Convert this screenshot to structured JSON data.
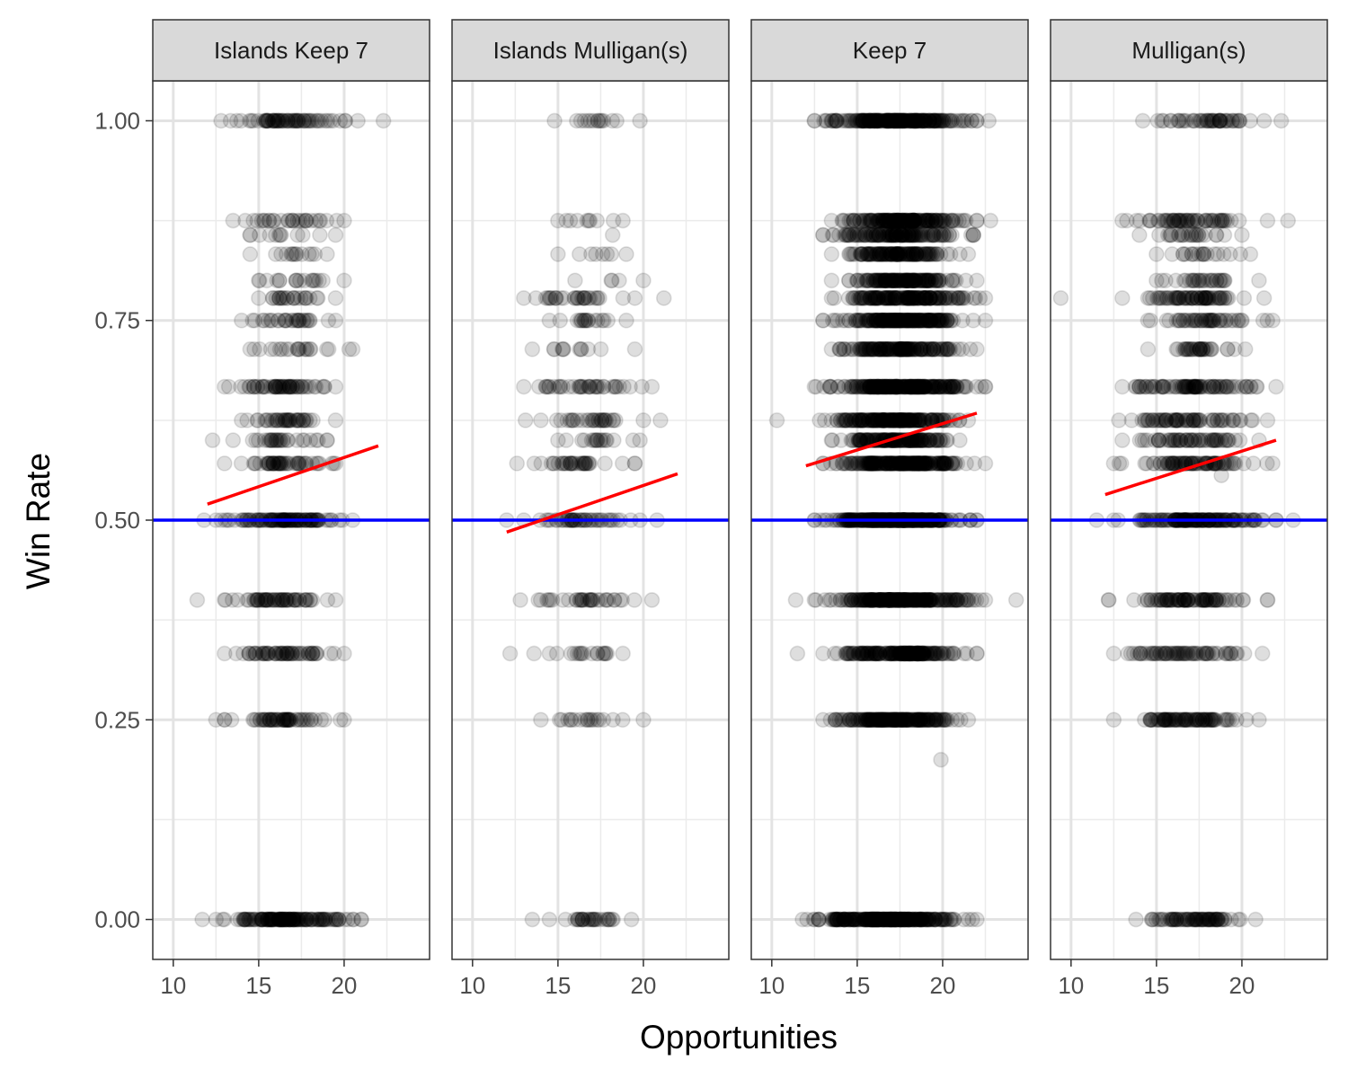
{
  "chart_data": {
    "type": "scatter",
    "xlabel": "Opportunities",
    "ylabel": "Win Rate",
    "xlim": [
      8.8,
      25.0
    ],
    "ylim": [
      -0.05,
      1.05
    ],
    "x_ticks": [
      10,
      15,
      20
    ],
    "x_tick_labels": [
      "10",
      "15",
      "20"
    ],
    "y_ticks": [
      0,
      0.25,
      0.5,
      0.75,
      1.0
    ],
    "y_tick_labels": [
      "0.00",
      "0.25",
      "0.50",
      "0.75",
      "1.00"
    ],
    "grid": true,
    "point_color": "#000000",
    "point_alpha": 0.13,
    "reference_line": {
      "y": 0.5,
      "color": "#0000ff"
    },
    "trend_color": "#ff0000",
    "panels": [
      {
        "label": "Islands Keep 7",
        "trend": {
          "x": [
            12,
            22
          ],
          "y": [
            0.52,
            0.593
          ]
        },
        "rows": [
          {
            "y": 1.0,
            "xmin": 12.8,
            "xmax": 20.8,
            "n": 70,
            "outliers": [
              22.3
            ]
          },
          {
            "y": 0.875,
            "xmin": 13.5,
            "xmax": 20.0,
            "n": 30,
            "outliers": []
          },
          {
            "y": 0.857,
            "xmin": 14.5,
            "xmax": 19.5,
            "n": 12,
            "outliers": []
          },
          {
            "y": 0.833,
            "xmin": 14.5,
            "xmax": 19.0,
            "n": 14,
            "outliers": []
          },
          {
            "y": 0.8,
            "xmin": 15.0,
            "xmax": 20.0,
            "n": 18,
            "outliers": []
          },
          {
            "y": 0.778,
            "xmin": 15.0,
            "xmax": 19.5,
            "n": 24,
            "outliers": []
          },
          {
            "y": 0.75,
            "xmin": 14.0,
            "xmax": 19.5,
            "n": 30,
            "outliers": []
          },
          {
            "y": 0.714,
            "xmin": 14.5,
            "xmax": 20.5,
            "n": 22,
            "outliers": []
          },
          {
            "y": 0.667,
            "xmin": 13.0,
            "xmax": 19.5,
            "n": 60,
            "outliers": []
          },
          {
            "y": 0.625,
            "xmin": 14.0,
            "xmax": 19.5,
            "n": 40,
            "outliers": []
          },
          {
            "y": 0.6,
            "xmin": 13.5,
            "xmax": 19.0,
            "n": 30,
            "outliers": [
              12.3
            ]
          },
          {
            "y": 0.571,
            "xmin": 13.0,
            "xmax": 19.5,
            "n": 50,
            "outliers": []
          },
          {
            "y": 0.5,
            "xmin": 12.5,
            "xmax": 20.5,
            "n": 110,
            "outliers": [
              11.8
            ]
          },
          {
            "y": 0.4,
            "xmin": 13.0,
            "xmax": 19.5,
            "n": 60,
            "outliers": [
              11.4
            ]
          },
          {
            "y": 0.333,
            "xmin": 13.0,
            "xmax": 20.0,
            "n": 60,
            "outliers": []
          },
          {
            "y": 0.25,
            "xmin": 13.0,
            "xmax": 20.0,
            "n": 60,
            "outliers": [
              12.5
            ]
          },
          {
            "y": 0.0,
            "xmin": 12.5,
            "xmax": 21.0,
            "n": 150,
            "outliers": [
              11.7
            ]
          }
        ]
      },
      {
        "label": "Islands Mulligan(s)",
        "trend": {
          "x": [
            12,
            22
          ],
          "y": [
            0.485,
            0.558
          ]
        },
        "rows": [
          {
            "y": 1.0,
            "xmin": 14.8,
            "xmax": 19.8,
            "n": 15,
            "outliers": []
          },
          {
            "y": 0.875,
            "xmin": 15.0,
            "xmax": 18.8,
            "n": 10,
            "outliers": []
          },
          {
            "y": 0.857,
            "xmin": 18.2,
            "xmax": 18.2,
            "n": 1,
            "outliers": []
          },
          {
            "y": 0.833,
            "xmin": 15.0,
            "xmax": 19.0,
            "n": 8,
            "outliers": []
          },
          {
            "y": 0.8,
            "xmin": 16.0,
            "xmax": 20.0,
            "n": 5,
            "outliers": []
          },
          {
            "y": 0.778,
            "xmin": 13.0,
            "xmax": 19.5,
            "n": 30,
            "outliers": [
              21.2
            ]
          },
          {
            "y": 0.75,
            "xmin": 14.5,
            "xmax": 19.0,
            "n": 18,
            "outliers": []
          },
          {
            "y": 0.714,
            "xmin": 13.5,
            "xmax": 19.5,
            "n": 12,
            "outliers": []
          },
          {
            "y": 0.667,
            "xmin": 13.0,
            "xmax": 20.5,
            "n": 40,
            "outliers": []
          },
          {
            "y": 0.625,
            "xmin": 14.0,
            "xmax": 20.0,
            "n": 30,
            "outliers": [
              13.1,
              21.0
            ]
          },
          {
            "y": 0.6,
            "xmin": 15.0,
            "xmax": 19.8,
            "n": 18,
            "outliers": []
          },
          {
            "y": 0.571,
            "xmin": 12.6,
            "xmax": 19.5,
            "n": 35,
            "outliers": []
          },
          {
            "y": 0.5,
            "xmin": 13.0,
            "xmax": 19.8,
            "n": 45,
            "outliers": [
              12.0,
              20.8
            ]
          },
          {
            "y": 0.4,
            "xmin": 12.8,
            "xmax": 20.5,
            "n": 35,
            "outliers": []
          },
          {
            "y": 0.333,
            "xmin": 14.5,
            "xmax": 18.8,
            "n": 18,
            "outliers": [
              12.2,
              13.6
            ]
          },
          {
            "y": 0.25,
            "xmin": 14.0,
            "xmax": 20.0,
            "n": 20,
            "outliers": []
          },
          {
            "y": 0.0,
            "xmin": 14.5,
            "xmax": 19.3,
            "n": 30,
            "outliers": [
              13.5
            ]
          }
        ]
      },
      {
        "label": "Keep 7",
        "trend": {
          "x": [
            12,
            22
          ],
          "y": [
            0.568,
            0.634
          ]
        },
        "rows": [
          {
            "y": 1.0,
            "xmin": 12.5,
            "xmax": 22.0,
            "n": 250,
            "outliers": [
              22.7
            ]
          },
          {
            "y": 0.875,
            "xmin": 13.5,
            "xmax": 22.0,
            "n": 180,
            "outliers": [
              22.8
            ]
          },
          {
            "y": 0.857,
            "xmin": 13.0,
            "xmax": 21.8,
            "n": 140,
            "outliers": []
          },
          {
            "y": 0.833,
            "xmin": 13.5,
            "xmax": 21.5,
            "n": 130,
            "outliers": []
          },
          {
            "y": 0.8,
            "xmin": 13.5,
            "xmax": 22.0,
            "n": 150,
            "outliers": []
          },
          {
            "y": 0.778,
            "xmin": 13.5,
            "xmax": 22.5,
            "n": 170,
            "outliers": []
          },
          {
            "y": 0.75,
            "xmin": 13.0,
            "xmax": 22.5,
            "n": 200,
            "outliers": []
          },
          {
            "y": 0.714,
            "xmin": 13.5,
            "xmax": 22.0,
            "n": 160,
            "outliers": []
          },
          {
            "y": 0.667,
            "xmin": 12.5,
            "xmax": 22.5,
            "n": 260,
            "outliers": []
          },
          {
            "y": 0.625,
            "xmin": 12.8,
            "xmax": 21.5,
            "n": 200,
            "outliers": [
              10.3
            ]
          },
          {
            "y": 0.6,
            "xmin": 13.5,
            "xmax": 21.0,
            "n": 150,
            "outliers": []
          },
          {
            "y": 0.571,
            "xmin": 13.0,
            "xmax": 22.5,
            "n": 220,
            "outliers": []
          },
          {
            "y": 0.5,
            "xmin": 12.5,
            "xmax": 22.0,
            "n": 320,
            "outliers": []
          },
          {
            "y": 0.4,
            "xmin": 12.5,
            "xmax": 22.5,
            "n": 260,
            "outliers": [
              11.4,
              24.3
            ]
          },
          {
            "y": 0.333,
            "xmin": 13.0,
            "xmax": 22.0,
            "n": 200,
            "outliers": [
              11.5
            ]
          },
          {
            "y": 0.25,
            "xmin": 13.0,
            "xmax": 21.5,
            "n": 200,
            "outliers": []
          },
          {
            "y": 0.2,
            "xmin": 19.9,
            "xmax": 19.9,
            "n": 1,
            "outliers": []
          },
          {
            "y": 0.0,
            "xmin": 11.8,
            "xmax": 22.0,
            "n": 320,
            "outliers": []
          }
        ]
      },
      {
        "label": "Mulligan(s)",
        "trend": {
          "x": [
            12,
            22
          ],
          "y": [
            0.532,
            0.6
          ]
        },
        "rows": [
          {
            "y": 1.0,
            "xmin": 14.2,
            "xmax": 21.3,
            "n": 50,
            "outliers": [
              22.3
            ]
          },
          {
            "y": 0.875,
            "xmin": 13.0,
            "xmax": 21.5,
            "n": 60,
            "outliers": [
              22.7
            ]
          },
          {
            "y": 0.857,
            "xmin": 14.0,
            "xmax": 20.0,
            "n": 25,
            "outliers": []
          },
          {
            "y": 0.833,
            "xmin": 15.0,
            "xmax": 20.5,
            "n": 20,
            "outliers": []
          },
          {
            "y": 0.8,
            "xmin": 15.0,
            "xmax": 21.0,
            "n": 30,
            "outliers": []
          },
          {
            "y": 0.778,
            "xmin": 13.0,
            "xmax": 21.3,
            "n": 70,
            "outliers": [
              9.4
            ]
          },
          {
            "y": 0.75,
            "xmin": 14.5,
            "xmax": 21.8,
            "n": 50,
            "outliers": []
          },
          {
            "y": 0.714,
            "xmin": 14.5,
            "xmax": 20.2,
            "n": 35,
            "outliers": []
          },
          {
            "y": 0.667,
            "xmin": 13.0,
            "xmax": 22.0,
            "n": 90,
            "outliers": []
          },
          {
            "y": 0.625,
            "xmin": 12.8,
            "xmax": 21.5,
            "n": 70,
            "outliers": []
          },
          {
            "y": 0.6,
            "xmin": 13.0,
            "xmax": 21.0,
            "n": 60,
            "outliers": []
          },
          {
            "y": 0.571,
            "xmin": 12.5,
            "xmax": 21.8,
            "n": 80,
            "outliers": []
          },
          {
            "y": 0.556,
            "xmin": 18.8,
            "xmax": 18.8,
            "n": 1,
            "outliers": []
          },
          {
            "y": 0.5,
            "xmin": 12.5,
            "xmax": 22.0,
            "n": 150,
            "outliers": [
              11.5,
              23.0
            ]
          },
          {
            "y": 0.4,
            "xmin": 12.2,
            "xmax": 21.5,
            "n": 90,
            "outliers": []
          },
          {
            "y": 0.333,
            "xmin": 12.5,
            "xmax": 21.2,
            "n": 70,
            "outliers": []
          },
          {
            "y": 0.25,
            "xmin": 12.5,
            "xmax": 21.0,
            "n": 90,
            "outliers": []
          },
          {
            "y": 0.0,
            "xmin": 13.8,
            "xmax": 20.8,
            "n": 80,
            "outliers": []
          }
        ]
      }
    ]
  }
}
